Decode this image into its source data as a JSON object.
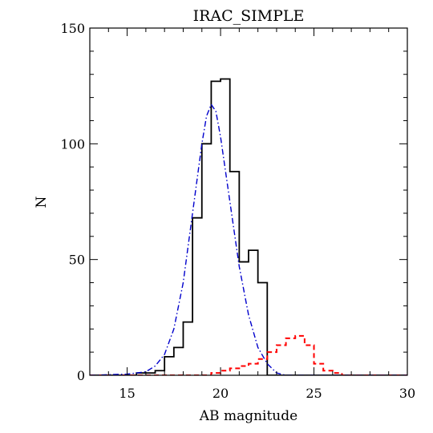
{
  "chart_data": {
    "type": "line",
    "title": "IRAC_SIMPLE",
    "xlabel": "AB magnitude",
    "ylabel": "N",
    "xlim": [
      13,
      30
    ],
    "ylim": [
      0,
      150
    ],
    "x_ticks": [
      15,
      20,
      25,
      30
    ],
    "y_ticks": [
      0,
      50,
      100,
      150
    ],
    "grid": false,
    "legend": "none",
    "series": [
      {
        "style": "histogram-solid",
        "color": "#000000",
        "bin_width": 0.5,
        "bins": [
          [
            15.0,
            0
          ],
          [
            15.5,
            1
          ],
          [
            16.0,
            1
          ],
          [
            16.5,
            2
          ],
          [
            17.0,
            8
          ],
          [
            17.5,
            12
          ],
          [
            18.0,
            23
          ],
          [
            18.5,
            68
          ],
          [
            19.0,
            100
          ],
          [
            19.5,
            127
          ],
          [
            20.0,
            128
          ],
          [
            20.5,
            88
          ],
          [
            21.0,
            49
          ],
          [
            21.5,
            54
          ],
          [
            22.0,
            40
          ],
          [
            22.5,
            0
          ]
        ]
      },
      {
        "style": "histogram-dashed",
        "color": "#ff0000",
        "bin_width": 0.5,
        "bins": [
          [
            19.5,
            1
          ],
          [
            20.0,
            2
          ],
          [
            20.5,
            3
          ],
          [
            21.0,
            4
          ],
          [
            21.5,
            5
          ],
          [
            22.0,
            7
          ],
          [
            22.5,
            10
          ],
          [
            23.0,
            13
          ],
          [
            23.5,
            16
          ],
          [
            24.0,
            17
          ],
          [
            24.5,
            13
          ],
          [
            25.0,
            5
          ],
          [
            25.5,
            2
          ],
          [
            26.0,
            1
          ],
          [
            26.5,
            0
          ]
        ]
      },
      {
        "style": "curve-dashdot",
        "color": "#0000cc",
        "x": [
          13,
          15,
          16,
          16.5,
          17,
          17.5,
          18,
          18.5,
          19,
          19.25,
          19.5,
          19.75,
          20,
          20.5,
          21,
          21.5,
          22,
          22.5,
          23,
          23.5,
          30
        ],
        "y": [
          0,
          0.5,
          1.5,
          4,
          9,
          20,
          40,
          70,
          100,
          112,
          117,
          114,
          103,
          75,
          47,
          26,
          12,
          5,
          1,
          0,
          0
        ]
      }
    ]
  }
}
